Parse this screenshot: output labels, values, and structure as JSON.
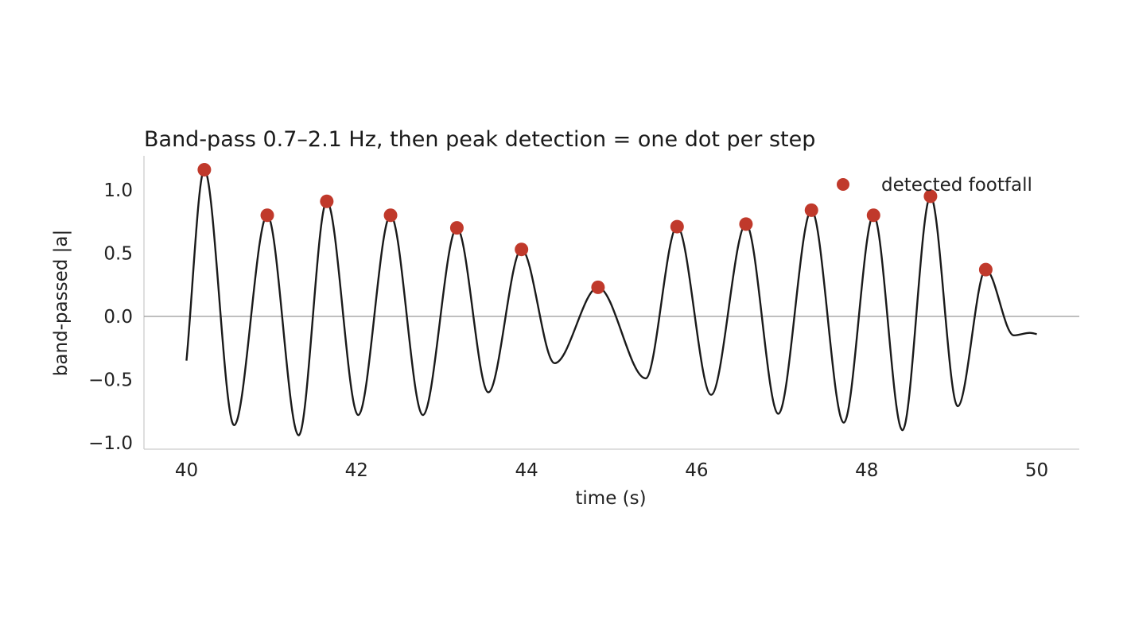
{
  "chart_data": {
    "type": "line",
    "title": "Band-pass 0.7–2.1 Hz, then peak detection = one dot per step",
    "xlabel": "time (s)",
    "ylabel": "band-passed |a|",
    "xlim": [
      39.5,
      50.5
    ],
    "ylim": [
      -1.05,
      1.27
    ],
    "xticks": [
      40,
      42,
      44,
      46,
      48,
      50
    ],
    "xtick_labels": [
      "40",
      "42",
      "44",
      "46",
      "48",
      "50"
    ],
    "yticks": [
      -1.0,
      -0.5,
      0.0,
      0.5,
      1.0
    ],
    "ytick_labels": [
      "−1.0",
      "−0.5",
      "0.0",
      "0.5",
      "1.0"
    ],
    "zero_line": true,
    "grid": false,
    "legend": {
      "position": "top-right",
      "entries": [
        "detected footfall"
      ]
    },
    "series": [
      {
        "kind": "line",
        "color": "#1a1a1a",
        "x": [
          40.0,
          40.21,
          40.56,
          40.95,
          41.32,
          41.65,
          42.02,
          42.4,
          42.78,
          43.18,
          43.55,
          43.94,
          44.33,
          44.84,
          45.4,
          45.77,
          46.17,
          46.58,
          46.96,
          47.35,
          47.73,
          48.08,
          48.42,
          48.75,
          49.07,
          49.4,
          49.73,
          49.92,
          50.0
        ],
        "y": [
          -0.35,
          1.16,
          -0.86,
          0.8,
          -0.94,
          0.91,
          -0.78,
          0.8,
          -0.78,
          0.7,
          -0.6,
          0.53,
          -0.37,
          0.23,
          -0.49,
          0.71,
          -0.62,
          0.73,
          -0.77,
          0.84,
          -0.84,
          0.8,
          -0.9,
          0.95,
          -0.71,
          0.37,
          -0.15,
          -0.13,
          -0.14
        ]
      },
      {
        "kind": "scatter",
        "name": "detected footfall",
        "color": "#c0392b",
        "x": [
          40.21,
          40.95,
          41.65,
          42.4,
          43.18,
          43.94,
          44.84,
          45.77,
          46.58,
          47.35,
          48.08,
          48.75,
          49.4
        ],
        "y": [
          1.16,
          0.8,
          0.91,
          0.8,
          0.7,
          0.53,
          0.23,
          0.71,
          0.73,
          0.84,
          0.8,
          0.95,
          0.37
        ]
      }
    ]
  }
}
